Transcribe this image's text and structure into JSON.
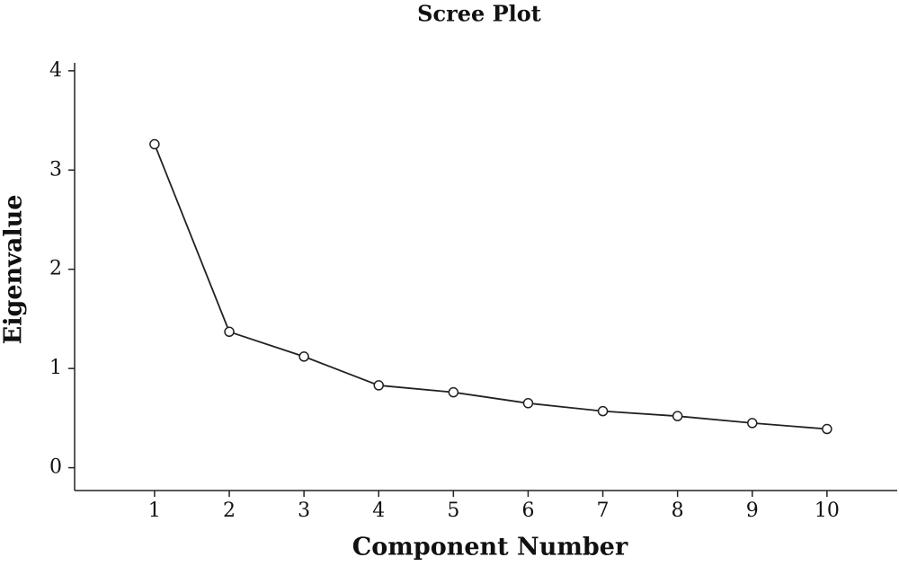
{
  "chart_data": {
    "type": "line",
    "title": "Scree Plot",
    "x_label": "Component Number",
    "y_label": "Eigenvalue",
    "x": [
      1,
      2,
      3,
      4,
      5,
      6,
      7,
      8,
      9,
      10
    ],
    "series": [
      {
        "values": [
          3.26,
          1.37,
          1.12,
          0.83,
          0.76,
          0.65,
          0.57,
          0.52,
          0.45,
          0.39
        ],
        "color": "#222222"
      }
    ],
    "xlim": [
      -0.07,
      10.94
    ],
    "xticks": [
      1,
      2,
      3,
      4,
      5,
      6,
      7,
      8,
      9,
      10
    ],
    "ylim": [
      -0.23,
      4.08
    ],
    "yticks": [
      0,
      1,
      2,
      3,
      4
    ],
    "grid": false
  }
}
